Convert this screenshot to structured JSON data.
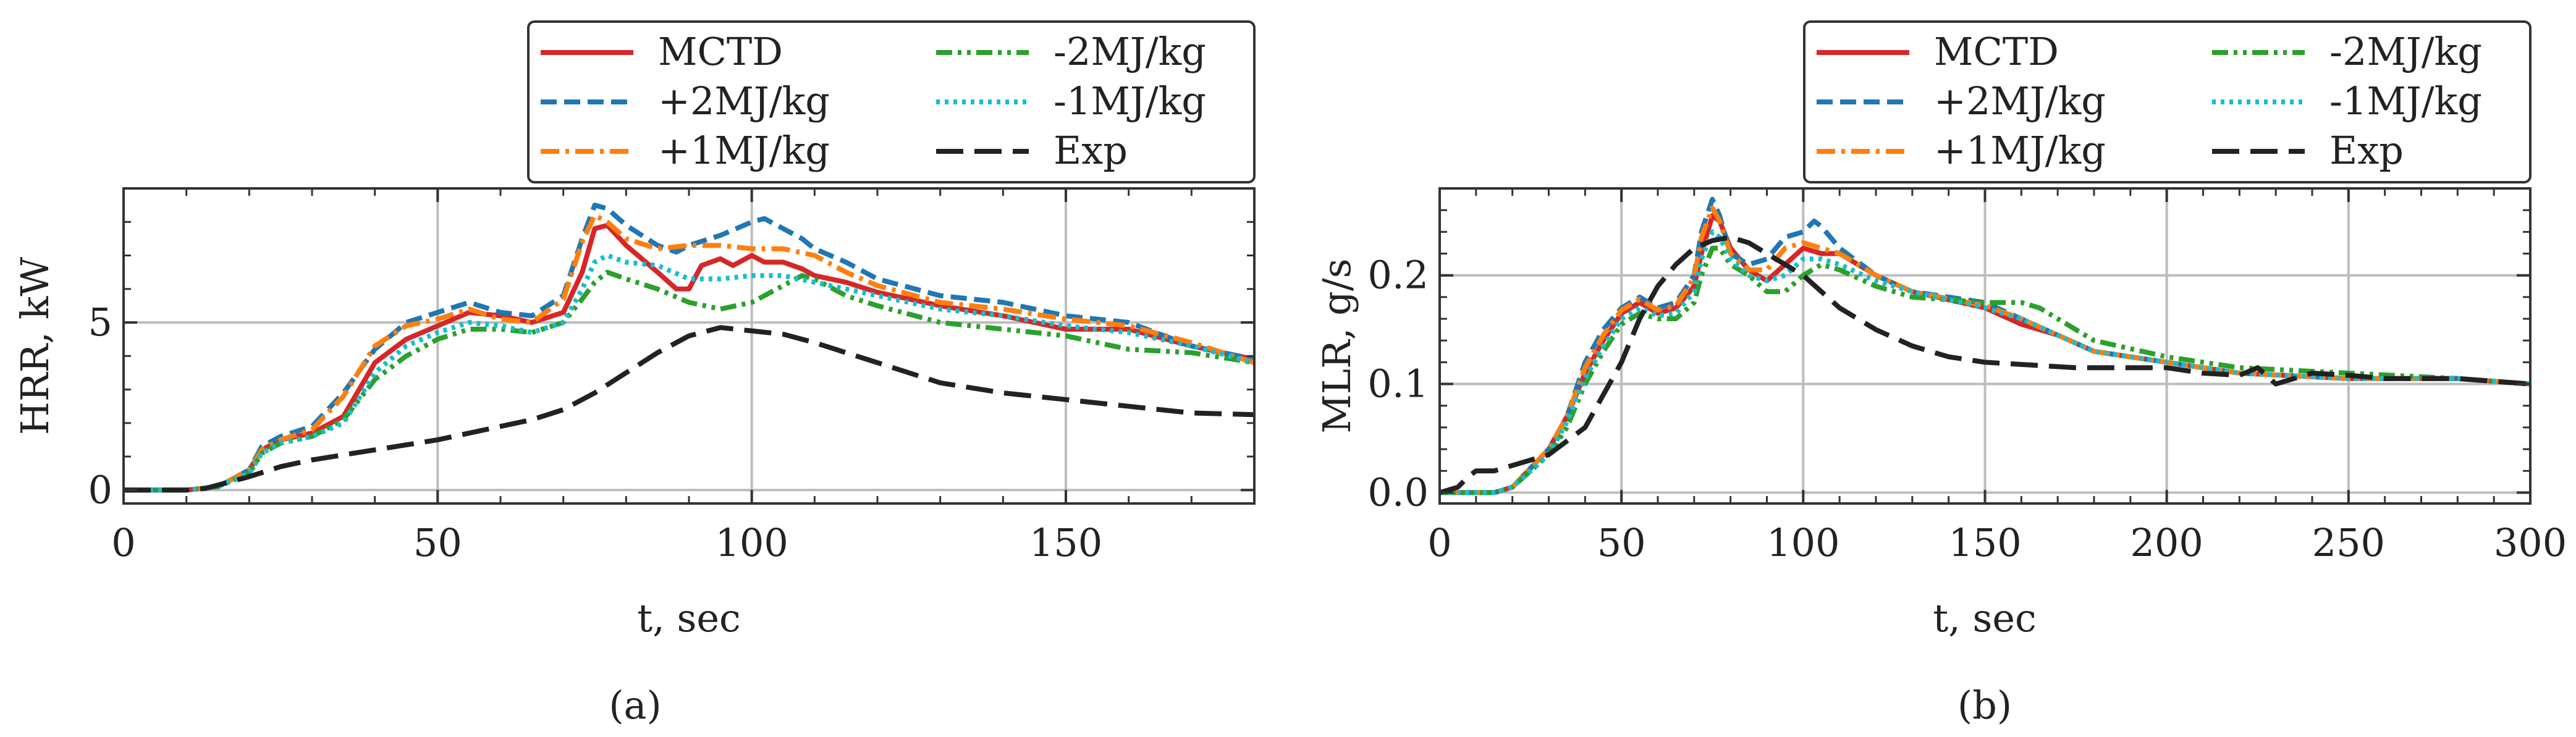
{
  "chart_data": [
    {
      "type": "line",
      "panel_label": "(a)",
      "xlabel": "t, sec",
      "ylabel": "HRR, kW",
      "xlim": [
        0,
        180
      ],
      "ylim": [
        -0.4,
        9
      ],
      "xticks": [
        0,
        50,
        100,
        150
      ],
      "yticks": [
        0,
        5
      ],
      "grid": true,
      "legend": {
        "position": "top-right",
        "columns": 2
      },
      "series": [
        {
          "name": "MCTD",
          "color": "#d62728",
          "dash": "solid",
          "x": [
            0,
            10,
            15,
            20,
            22,
            25,
            30,
            35,
            40,
            45,
            50,
            55,
            60,
            65,
            70,
            73,
            75,
            77,
            80,
            85,
            88,
            90,
            92,
            95,
            97,
            100,
            102,
            105,
            108,
            110,
            115,
            120,
            130,
            140,
            150,
            160,
            170,
            180
          ],
          "y": [
            0,
            0,
            0.1,
            0.6,
            1.2,
            1.5,
            1.7,
            2.2,
            3.8,
            4.5,
            4.9,
            5.3,
            5.2,
            5.0,
            5.3,
            6.5,
            7.8,
            7.9,
            7.3,
            6.5,
            6.0,
            6.0,
            6.7,
            6.9,
            6.7,
            7.0,
            6.8,
            6.8,
            6.6,
            6.4,
            6.2,
            5.9,
            5.5,
            5.2,
            4.8,
            4.8,
            4.3,
            3.9
          ]
        },
        {
          "name": "+2MJ/kg",
          "color": "#1f77b4",
          "dash": "dashed",
          "x": [
            0,
            10,
            15,
            20,
            22,
            25,
            30,
            35,
            40,
            45,
            50,
            55,
            60,
            65,
            70,
            73,
            75,
            77,
            80,
            85,
            88,
            90,
            95,
            100,
            102,
            105,
            108,
            110,
            115,
            120,
            130,
            140,
            150,
            160,
            170,
            180
          ],
          "y": [
            0,
            0,
            0.1,
            0.6,
            1.3,
            1.6,
            1.9,
            2.9,
            4.2,
            5.0,
            5.3,
            5.6,
            5.3,
            5.2,
            5.8,
            7.5,
            8.5,
            8.4,
            7.9,
            7.3,
            7.1,
            7.3,
            7.6,
            8.0,
            8.1,
            7.8,
            7.5,
            7.2,
            6.8,
            6.3,
            5.8,
            5.6,
            5.2,
            5.0,
            4.3,
            3.9
          ]
        },
        {
          "name": "+1MJ/kg",
          "color": "#ff7f0e",
          "dash": "dashdot",
          "x": [
            0,
            10,
            15,
            20,
            22,
            25,
            30,
            35,
            40,
            45,
            50,
            55,
            60,
            65,
            70,
            73,
            75,
            77,
            80,
            85,
            90,
            95,
            100,
            105,
            110,
            115,
            120,
            130,
            140,
            150,
            160,
            170,
            180
          ],
          "y": [
            0,
            0,
            0.1,
            0.6,
            1.2,
            1.5,
            1.8,
            2.8,
            4.3,
            4.9,
            5.1,
            5.4,
            5.1,
            5.0,
            5.7,
            7.4,
            8.2,
            8.0,
            7.5,
            7.2,
            7.3,
            7.3,
            7.2,
            7.2,
            7.0,
            6.5,
            6.1,
            5.6,
            5.4,
            5.1,
            4.9,
            4.4,
            3.8
          ]
        },
        {
          "name": "-2MJ/kg",
          "color": "#2ca02c",
          "dash": "dashdotdot",
          "x": [
            0,
            10,
            15,
            20,
            22,
            25,
            30,
            35,
            40,
            45,
            50,
            55,
            60,
            65,
            70,
            73,
            75,
            77,
            80,
            85,
            90,
            95,
            100,
            105,
            108,
            110,
            115,
            120,
            130,
            140,
            150,
            155,
            160,
            170,
            180
          ],
          "y": [
            0,
            0,
            0.1,
            0.5,
            1.1,
            1.4,
            1.6,
            2.1,
            3.3,
            4.0,
            4.5,
            4.8,
            4.8,
            4.7,
            5.0,
            5.7,
            6.2,
            6.5,
            6.3,
            6.0,
            5.6,
            5.4,
            5.6,
            6.1,
            6.4,
            6.3,
            5.8,
            5.5,
            5.0,
            4.8,
            4.6,
            4.4,
            4.2,
            4.1,
            3.8
          ]
        },
        {
          "name": "-1MJ/kg",
          "color": "#17becf",
          "dash": "dotted",
          "x": [
            0,
            10,
            15,
            20,
            22,
            25,
            30,
            35,
            40,
            45,
            50,
            55,
            60,
            65,
            70,
            73,
            75,
            77,
            80,
            85,
            90,
            95,
            100,
            105,
            110,
            115,
            120,
            130,
            140,
            150,
            160,
            170,
            180
          ],
          "y": [
            0,
            0,
            0.1,
            0.5,
            1.1,
            1.4,
            1.6,
            2.0,
            3.5,
            4.3,
            4.7,
            5.0,
            4.9,
            4.7,
            5.0,
            6.0,
            6.8,
            7.0,
            6.8,
            6.7,
            6.3,
            6.3,
            6.4,
            6.4,
            6.2,
            6.0,
            5.8,
            5.4,
            5.2,
            4.9,
            4.7,
            4.3,
            3.8
          ]
        },
        {
          "name": "Exp",
          "color": "#222222",
          "dash": "longdash",
          "x": [
            0,
            10,
            13,
            15,
            20,
            25,
            30,
            35,
            40,
            45,
            50,
            55,
            60,
            65,
            70,
            75,
            80,
            85,
            90,
            95,
            100,
            105,
            110,
            120,
            130,
            140,
            150,
            160,
            170,
            180
          ],
          "y": [
            0,
            0,
            0.05,
            0.15,
            0.4,
            0.7,
            0.9,
            1.05,
            1.2,
            1.35,
            1.5,
            1.7,
            1.9,
            2.1,
            2.4,
            2.9,
            3.5,
            4.1,
            4.6,
            4.85,
            4.75,
            4.65,
            4.4,
            3.8,
            3.2,
            2.9,
            2.7,
            2.5,
            2.3,
            2.25
          ]
        }
      ]
    },
    {
      "type": "line",
      "panel_label": "(b)",
      "xlabel": "t, sec",
      "ylabel": "MLR, g/s",
      "xlim": [
        0,
        300
      ],
      "ylim": [
        -0.01,
        0.28
      ],
      "xticks": [
        0,
        50,
        100,
        150,
        200,
        250,
        300
      ],
      "yticks": [
        0.0,
        0.1,
        0.2
      ],
      "yticklabels": [
        "0.0",
        "0.1",
        "0.2"
      ],
      "grid": true,
      "legend": {
        "position": "top-right",
        "columns": 2
      },
      "series": [
        {
          "name": "MCTD",
          "color": "#d62728",
          "dash": "solid",
          "x": [
            0,
            15,
            20,
            30,
            35,
            40,
            45,
            50,
            55,
            60,
            65,
            70,
            72,
            75,
            77,
            80,
            85,
            90,
            95,
            100,
            105,
            110,
            120,
            130,
            150,
            160,
            170,
            180,
            200,
            220,
            250,
            280,
            300
          ],
          "y": [
            0,
            0,
            0.005,
            0.04,
            0.07,
            0.11,
            0.14,
            0.165,
            0.175,
            0.165,
            0.17,
            0.19,
            0.22,
            0.255,
            0.25,
            0.225,
            0.205,
            0.195,
            0.21,
            0.225,
            0.22,
            0.22,
            0.2,
            0.185,
            0.17,
            0.155,
            0.145,
            0.13,
            0.12,
            0.11,
            0.105,
            0.105,
            0.1
          ]
        },
        {
          "name": "+2MJ/kg",
          "color": "#1f77b4",
          "dash": "dashed",
          "x": [
            0,
            15,
            20,
            30,
            35,
            40,
            45,
            50,
            55,
            60,
            65,
            70,
            72,
            75,
            77,
            80,
            85,
            90,
            95,
            100,
            103,
            105,
            110,
            120,
            130,
            150,
            160,
            170,
            180,
            200,
            220,
            250,
            280,
            300
          ],
          "y": [
            0,
            0,
            0.005,
            0.04,
            0.07,
            0.12,
            0.15,
            0.17,
            0.18,
            0.17,
            0.175,
            0.2,
            0.24,
            0.27,
            0.255,
            0.22,
            0.21,
            0.215,
            0.235,
            0.24,
            0.25,
            0.245,
            0.225,
            0.2,
            0.185,
            0.175,
            0.16,
            0.145,
            0.13,
            0.12,
            0.11,
            0.105,
            0.105,
            0.1
          ]
        },
        {
          "name": "+1MJ/kg",
          "color": "#ff7f0e",
          "dash": "dashdot",
          "x": [
            0,
            15,
            20,
            30,
            35,
            40,
            45,
            50,
            55,
            60,
            65,
            70,
            72,
            75,
            77,
            80,
            85,
            90,
            95,
            100,
            105,
            110,
            120,
            130,
            150,
            160,
            170,
            180,
            200,
            220,
            250,
            280,
            300
          ],
          "y": [
            0,
            0,
            0.005,
            0.04,
            0.07,
            0.115,
            0.145,
            0.168,
            0.178,
            0.168,
            0.172,
            0.198,
            0.235,
            0.262,
            0.25,
            0.22,
            0.205,
            0.205,
            0.225,
            0.23,
            0.225,
            0.22,
            0.2,
            0.185,
            0.172,
            0.16,
            0.145,
            0.13,
            0.12,
            0.11,
            0.105,
            0.105,
            0.1
          ]
        },
        {
          "name": "-2MJ/kg",
          "color": "#2ca02c",
          "dash": "dashdotdot",
          "x": [
            0,
            15,
            20,
            30,
            35,
            40,
            45,
            50,
            55,
            60,
            65,
            70,
            72,
            75,
            77,
            80,
            85,
            90,
            95,
            100,
            105,
            110,
            120,
            130,
            150,
            160,
            165,
            170,
            180,
            200,
            220,
            250,
            280,
            300
          ],
          "y": [
            0,
            0,
            0.005,
            0.035,
            0.06,
            0.1,
            0.13,
            0.155,
            0.165,
            0.16,
            0.16,
            0.175,
            0.2,
            0.225,
            0.225,
            0.21,
            0.2,
            0.185,
            0.185,
            0.2,
            0.21,
            0.205,
            0.19,
            0.18,
            0.175,
            0.175,
            0.17,
            0.16,
            0.14,
            0.125,
            0.115,
            0.11,
            0.105,
            0.1
          ]
        },
        {
          "name": "-1MJ/kg",
          "color": "#17becf",
          "dash": "dotted",
          "x": [
            0,
            15,
            20,
            30,
            35,
            40,
            45,
            50,
            55,
            60,
            65,
            70,
            72,
            75,
            77,
            80,
            85,
            90,
            95,
            100,
            105,
            110,
            120,
            130,
            150,
            160,
            170,
            180,
            200,
            220,
            250,
            280,
            300
          ],
          "y": [
            0,
            0,
            0.005,
            0.035,
            0.065,
            0.105,
            0.135,
            0.16,
            0.17,
            0.163,
            0.165,
            0.185,
            0.215,
            0.24,
            0.235,
            0.215,
            0.2,
            0.195,
            0.2,
            0.215,
            0.215,
            0.21,
            0.195,
            0.185,
            0.17,
            0.16,
            0.145,
            0.13,
            0.12,
            0.11,
            0.105,
            0.105,
            0.1
          ]
        },
        {
          "name": "Exp",
          "color": "#222222",
          "dash": "longdash",
          "x": [
            0,
            5,
            8,
            10,
            15,
            20,
            25,
            30,
            40,
            50,
            55,
            60,
            65,
            70,
            75,
            80,
            85,
            90,
            95,
            100,
            105,
            110,
            120,
            130,
            140,
            150,
            175,
            200,
            210,
            220,
            225,
            230,
            240,
            250,
            260,
            280,
            300
          ],
          "y": [
            0.0,
            0.005,
            0.015,
            0.02,
            0.02,
            0.025,
            0.03,
            0.035,
            0.06,
            0.12,
            0.16,
            0.19,
            0.21,
            0.225,
            0.232,
            0.235,
            0.23,
            0.22,
            0.21,
            0.2,
            0.185,
            0.17,
            0.15,
            0.135,
            0.125,
            0.12,
            0.115,
            0.115,
            0.11,
            0.108,
            0.115,
            0.1,
            0.11,
            0.108,
            0.105,
            0.105,
            0.1
          ]
        }
      ]
    }
  ]
}
